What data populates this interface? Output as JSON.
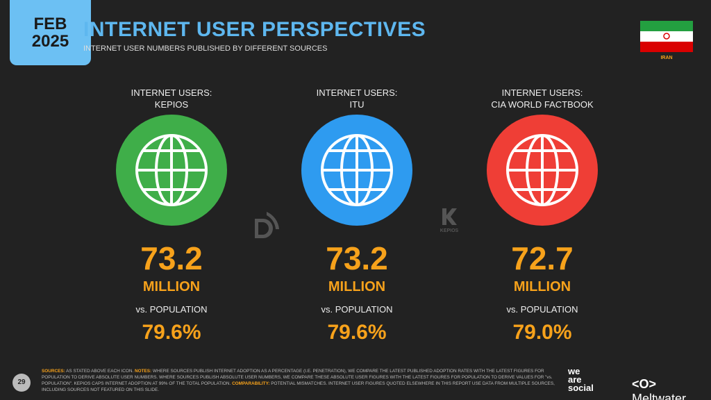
{
  "header": {
    "date_line1": "FEB",
    "date_line2": "2025",
    "title": "INTERNET USER PERSPECTIVES",
    "subtitle": "INTERNET USER NUMBERS PUBLISHED BY DIFFERENT SOURCES",
    "country": "IRAN"
  },
  "panels": [
    {
      "label_line1": "INTERNET USERS:",
      "label_line2": "KEPIOS",
      "users": "73.2",
      "unit": "MILLION",
      "vs_label": "vs. POPULATION",
      "share": "79.6%"
    },
    {
      "label_line1": "INTERNET USERS:",
      "label_line2": "ITU",
      "users": "73.2",
      "unit": "MILLION",
      "vs_label": "vs. POPULATION",
      "share": "79.6%"
    },
    {
      "label_line1": "INTERNET USERS:",
      "label_line2": "CIA WORLD FACTBOOK",
      "users": "72.7",
      "unit": "MILLION",
      "vs_label": "vs. POPULATION",
      "share": "79.0%"
    }
  ],
  "watermark": "KEPIOS",
  "footer": {
    "page": "29",
    "notes": [
      {
        "label": "SOURCES:",
        "text": " AS STATED ABOVE EACH ICON. "
      },
      {
        "label": "NOTES:",
        "text": " WHERE SOURCES PUBLISH INTERNET ADOPTION AS A PERCENTAGE (I.E. PENETRATION), WE COMPARE THE LATEST PUBLISHED ADOPTION RATES WITH THE LATEST FIGURES FOR POPULATION TO DERIVE ABSOLUTE USER NUMBERS. WHERE SOURCES PUBLISH ABSOLUTE USER NUMBERS, WE COMPARE THESE ABSOLUTE USER FIGURES WITH THE LATEST FIGURES FOR POPULATION TO DERIVE VALUES FOR \"vs. POPULATION\". KEPIOS CAPS INTERNET ADOPTION AT 99% OF THE TOTAL POPULATION. "
      },
      {
        "label": "COMPARABILITY:",
        "text": " POTENTIAL MISMATCHES. INTERNET USER FIGURES QUOTED ELSEWHERE IN THIS REPORT USE DATA FROM MULTIPLE SOURCES, INCLUDING SOURCES NOT FEATURED ON THIS SLIDE."
      }
    ],
    "brand1": [
      "we",
      "are",
      "social"
    ],
    "brand2": "Meltwater"
  }
}
